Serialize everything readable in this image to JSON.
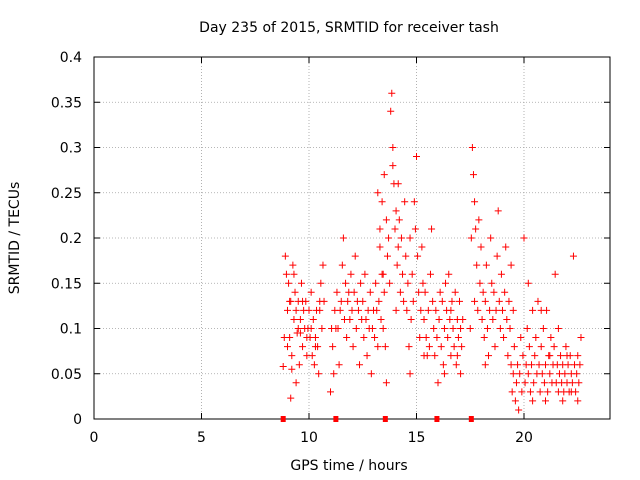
{
  "chart_data": {
    "type": "scatter",
    "title": "Day 235 of 2015, SRMTID for receiver tash",
    "xlabel": "GPS time / hours",
    "ylabel": "SRMTID / TECUs",
    "xlim": [
      0,
      24
    ],
    "ylim": [
      0,
      0.4
    ],
    "x_ticks": [
      0,
      5,
      10,
      15,
      20
    ],
    "x_tick_labels": [
      "0",
      "5",
      "10",
      "15",
      "20"
    ],
    "y_ticks": [
      0,
      0.05,
      0.1,
      0.15,
      0.2,
      0.25,
      0.3,
      0.35,
      0.4
    ],
    "y_tick_labels": [
      "0",
      "0.05",
      "0.1",
      "0.15",
      "0.2",
      "0.25",
      "0.3",
      "0.35",
      "0.4"
    ],
    "grid": true,
    "marker": "+",
    "series": [
      {
        "name": "SRMTID",
        "color": "#ff0000",
        "points": [
          [
            8.8,
            0.058
          ],
          [
            8.9,
            0.18
          ],
          [
            8.95,
            0.16
          ],
          [
            9.0,
            0.12
          ],
          [
            9.05,
            0.15
          ],
          [
            9.1,
            0.09
          ],
          [
            9.15,
            0.13
          ],
          [
            9.2,
            0.07
          ],
          [
            9.25,
            0.17
          ],
          [
            9.3,
            0.11
          ],
          [
            9.35,
            0.14
          ],
          [
            9.4,
            0.04
          ],
          [
            9.45,
            0.095
          ],
          [
            9.5,
            0.13
          ],
          [
            9.55,
            0.06
          ],
          [
            9.6,
            0.11
          ],
          [
            9.65,
            0.15
          ],
          [
            9.7,
            0.08
          ],
          [
            9.75,
            0.12
          ],
          [
            9.8,
            0.1
          ],
          [
            9.85,
            0.13
          ],
          [
            9.9,
            0.07
          ],
          [
            9.95,
            0.1
          ],
          [
            10.0,
            0.12
          ],
          [
            10.05,
            0.09
          ],
          [
            10.1,
            0.14
          ],
          [
            10.15,
            0.07
          ],
          [
            10.2,
            0.11
          ],
          [
            10.25,
            0.06
          ],
          [
            10.3,
            0.09
          ],
          [
            10.35,
            0.12
          ],
          [
            10.4,
            0.08
          ],
          [
            10.45,
            0.05
          ],
          [
            10.5,
            0.13
          ],
          [
            10.55,
            0.15
          ],
          [
            10.6,
            0.1
          ],
          [
            10.65,
            0.17
          ],
          [
            10.7,
            0.13
          ],
          [
            8.85,
            0.09
          ],
          [
            9.0,
            0.08
          ],
          [
            9.1,
            0.13
          ],
          [
            9.3,
            0.16
          ],
          [
            9.5,
            0.1
          ],
          [
            9.7,
            0.13
          ],
          [
            9.9,
            0.09
          ],
          [
            10.1,
            0.1
          ],
          [
            10.3,
            0.08
          ],
          [
            10.5,
            0.12
          ],
          [
            9.4,
            0.12
          ],
          [
            9.6,
            0.095
          ],
          [
            9.2,
            0.055
          ],
          [
            9.15,
            0.023
          ],
          [
            11.0,
            0.03
          ],
          [
            11.1,
            0.08
          ],
          [
            11.2,
            0.12
          ],
          [
            11.3,
            0.14
          ],
          [
            11.35,
            0.1
          ],
          [
            11.4,
            0.06
          ],
          [
            11.5,
            0.13
          ],
          [
            11.55,
            0.17
          ],
          [
            11.6,
            0.2
          ],
          [
            11.7,
            0.15
          ],
          [
            11.75,
            0.09
          ],
          [
            11.8,
            0.13
          ],
          [
            11.9,
            0.11
          ],
          [
            11.95,
            0.16
          ],
          [
            12.0,
            0.12
          ],
          [
            12.05,
            0.08
          ],
          [
            12.1,
            0.14
          ],
          [
            12.15,
            0.18
          ],
          [
            12.2,
            0.1
          ],
          [
            12.3,
            0.12
          ],
          [
            12.35,
            0.06
          ],
          [
            12.4,
            0.15
          ],
          [
            12.45,
            0.11
          ],
          [
            12.5,
            0.13
          ],
          [
            12.55,
            0.09
          ],
          [
            12.6,
            0.16
          ],
          [
            12.7,
            0.07
          ],
          [
            12.75,
            0.12
          ],
          [
            12.8,
            0.1
          ],
          [
            12.85,
            0.14
          ],
          [
            12.9,
            0.05
          ],
          [
            13.0,
            0.12
          ],
          [
            13.05,
            0.09
          ],
          [
            13.1,
            0.15
          ],
          [
            13.2,
            0.08
          ],
          [
            13.25,
            0.13
          ],
          [
            13.3,
            0.19
          ],
          [
            13.35,
            0.11
          ],
          [
            13.4,
            0.16
          ],
          [
            13.45,
            0.1
          ],
          [
            13.5,
            0.14
          ],
          [
            13.55,
            0.08
          ],
          [
            11.25,
            0.1
          ],
          [
            11.45,
            0.12
          ],
          [
            11.65,
            0.11
          ],
          [
            11.85,
            0.14
          ],
          [
            12.25,
            0.13
          ],
          [
            12.65,
            0.11
          ],
          [
            13.15,
            0.12
          ],
          [
            12.95,
            0.1
          ],
          [
            11.05,
            0.1
          ],
          [
            11.15,
            0.05
          ],
          [
            13.2,
            0.25
          ],
          [
            13.3,
            0.21
          ],
          [
            13.4,
            0.24
          ],
          [
            13.5,
            0.27
          ],
          [
            13.6,
            0.22
          ],
          [
            13.65,
            0.18
          ],
          [
            13.7,
            0.2
          ],
          [
            13.75,
            0.15
          ],
          [
            13.8,
            0.34
          ],
          [
            13.85,
            0.36
          ],
          [
            13.9,
            0.3
          ],
          [
            13.95,
            0.26
          ],
          [
            14.0,
            0.21
          ],
          [
            14.05,
            0.23
          ],
          [
            14.1,
            0.17
          ],
          [
            14.15,
            0.19
          ],
          [
            14.2,
            0.22
          ],
          [
            14.25,
            0.14
          ],
          [
            14.3,
            0.2
          ],
          [
            14.35,
            0.16
          ],
          [
            14.4,
            0.13
          ],
          [
            14.45,
            0.24
          ],
          [
            14.5,
            0.18
          ],
          [
            14.55,
            0.12
          ],
          [
            14.6,
            0.15
          ],
          [
            14.65,
            0.08
          ],
          [
            14.7,
            0.05
          ],
          [
            14.75,
            0.11
          ],
          [
            14.8,
            0.16
          ],
          [
            14.85,
            0.13
          ],
          [
            14.9,
            0.24
          ],
          [
            14.95,
            0.21
          ],
          [
            15.0,
            0.29
          ],
          [
            15.05,
            0.18
          ],
          [
            15.1,
            0.14
          ],
          [
            15.15,
            0.09
          ],
          [
            15.2,
            0.12
          ],
          [
            15.25,
            0.19
          ],
          [
            15.3,
            0.15
          ],
          [
            15.35,
            0.11
          ],
          [
            15.4,
            0.14
          ],
          [
            15.45,
            0.09
          ],
          [
            15.5,
            0.07
          ],
          [
            15.55,
            0.12
          ],
          [
            15.6,
            0.08
          ],
          [
            15.65,
            0.16
          ],
          [
            15.7,
            0.21
          ],
          [
            15.75,
            0.13
          ],
          [
            13.6,
            0.04
          ],
          [
            13.45,
            0.16
          ],
          [
            14.05,
            0.12
          ],
          [
            14.7,
            0.2
          ],
          [
            15.35,
            0.07
          ],
          [
            13.9,
            0.28
          ],
          [
            14.15,
            0.26
          ],
          [
            15.8,
            0.1
          ],
          [
            15.85,
            0.07
          ],
          [
            15.9,
            0.12
          ],
          [
            15.95,
            0.09
          ],
          [
            16.0,
            0.04
          ],
          [
            16.05,
            0.11
          ],
          [
            16.1,
            0.14
          ],
          [
            16.15,
            0.08
          ],
          [
            16.2,
            0.13
          ],
          [
            16.25,
            0.06
          ],
          [
            16.3,
            0.1
          ],
          [
            16.35,
            0.15
          ],
          [
            16.4,
            0.12
          ],
          [
            16.45,
            0.09
          ],
          [
            16.5,
            0.16
          ],
          [
            16.55,
            0.11
          ],
          [
            16.6,
            0.07
          ],
          [
            16.65,
            0.13
          ],
          [
            16.7,
            0.1
          ],
          [
            16.75,
            0.08
          ],
          [
            16.8,
            0.14
          ],
          [
            16.85,
            0.06
          ],
          [
            16.9,
            0.11
          ],
          [
            16.95,
            0.09
          ],
          [
            17.0,
            0.13
          ],
          [
            17.05,
            0.05
          ],
          [
            17.1,
            0.08
          ],
          [
            17.15,
            0.11
          ],
          [
            16.3,
            0.05
          ],
          [
            16.6,
            0.12
          ],
          [
            16.9,
            0.07
          ],
          [
            17.05,
            0.1
          ],
          [
            17.5,
            0.1
          ],
          [
            17.55,
            0.2
          ],
          [
            17.6,
            0.3
          ],
          [
            17.65,
            0.27
          ],
          [
            17.7,
            0.24
          ],
          [
            17.75,
            0.21
          ],
          [
            17.8,
            0.17
          ],
          [
            17.85,
            0.12
          ],
          [
            17.9,
            0.22
          ],
          [
            17.95,
            0.15
          ],
          [
            18.0,
            0.19
          ],
          [
            18.05,
            0.11
          ],
          [
            18.1,
            0.14
          ],
          [
            18.15,
            0.09
          ],
          [
            18.2,
            0.13
          ],
          [
            18.25,
            0.17
          ],
          [
            18.3,
            0.1
          ],
          [
            18.35,
            0.07
          ],
          [
            18.4,
            0.12
          ],
          [
            18.45,
            0.2
          ],
          [
            18.5,
            0.15
          ],
          [
            18.55,
            0.11
          ],
          [
            18.6,
            0.14
          ],
          [
            18.65,
            0.08
          ],
          [
            18.7,
            0.12
          ],
          [
            18.75,
            0.18
          ],
          [
            18.8,
            0.23
          ],
          [
            18.85,
            0.13
          ],
          [
            18.9,
            0.1
          ],
          [
            18.95,
            0.16
          ],
          [
            19.0,
            0.12
          ],
          [
            19.05,
            0.09
          ],
          [
            19.1,
            0.14
          ],
          [
            19.15,
            0.19
          ],
          [
            19.2,
            0.11
          ],
          [
            19.25,
            0.07
          ],
          [
            19.3,
            0.13
          ],
          [
            19.35,
            0.1
          ],
          [
            19.4,
            0.17
          ],
          [
            19.5,
            0.12
          ],
          [
            17.7,
            0.13
          ],
          [
            18.2,
            0.06
          ],
          [
            19.4,
            0.06
          ],
          [
            19.45,
            0.03
          ],
          [
            19.5,
            0.05
          ],
          [
            19.55,
            0.08
          ],
          [
            19.6,
            0.02
          ],
          [
            19.65,
            0.04
          ],
          [
            19.7,
            0.06
          ],
          [
            19.75,
            0.01
          ],
          [
            19.8,
            0.05
          ],
          [
            19.85,
            0.09
          ],
          [
            19.9,
            0.03
          ],
          [
            19.95,
            0.07
          ],
          [
            20.0,
            0.2
          ],
          [
            20.05,
            0.04
          ],
          [
            20.1,
            0.06
          ],
          [
            20.15,
            0.1
          ],
          [
            20.2,
            0.05
          ],
          [
            20.25,
            0.08
          ],
          [
            20.3,
            0.03
          ],
          [
            20.35,
            0.06
          ],
          [
            20.4,
            0.12
          ],
          [
            20.45,
            0.04
          ],
          [
            20.5,
            0.07
          ],
          [
            20.55,
            0.09
          ],
          [
            20.6,
            0.05
          ],
          [
            20.65,
            0.13
          ],
          [
            20.7,
            0.06
          ],
          [
            20.75,
            0.03
          ],
          [
            20.8,
            0.08
          ],
          [
            20.85,
            0.05
          ],
          [
            20.9,
            0.1
          ],
          [
            20.95,
            0.04
          ],
          [
            21.0,
            0.06
          ],
          [
            21.05,
            0.12
          ],
          [
            21.1,
            0.03
          ],
          [
            21.15,
            0.07
          ],
          [
            21.2,
            0.05
          ],
          [
            21.25,
            0.09
          ],
          [
            21.3,
            0.04
          ],
          [
            21.35,
            0.06
          ],
          [
            21.4,
            0.08
          ],
          [
            21.45,
            0.16
          ],
          [
            21.5,
            0.04
          ],
          [
            21.55,
            0.06
          ],
          [
            21.6,
            0.03
          ],
          [
            21.65,
            0.05
          ],
          [
            21.7,
            0.07
          ],
          [
            21.75,
            0.04
          ],
          [
            21.8,
            0.06
          ],
          [
            21.85,
            0.03
          ],
          [
            21.9,
            0.05
          ],
          [
            21.95,
            0.08
          ],
          [
            22.0,
            0.04
          ],
          [
            22.05,
            0.06
          ],
          [
            22.1,
            0.03
          ],
          [
            22.15,
            0.07
          ],
          [
            22.2,
            0.05
          ],
          [
            22.25,
            0.04
          ],
          [
            22.3,
            0.18
          ],
          [
            22.35,
            0.06
          ],
          [
            22.4,
            0.03
          ],
          [
            22.45,
            0.05
          ],
          [
            22.5,
            0.07
          ],
          [
            22.55,
            0.04
          ],
          [
            22.6,
            0.06
          ],
          [
            22.65,
            0.09
          ],
          [
            20.4,
            0.02
          ],
          [
            21.0,
            0.02
          ],
          [
            21.8,
            0.02
          ],
          [
            22.2,
            0.03
          ],
          [
            21.6,
            0.1
          ],
          [
            21.2,
            0.07
          ],
          [
            20.8,
            0.12
          ],
          [
            20.2,
            0.15
          ],
          [
            22.0,
            0.07
          ],
          [
            22.5,
            0.02
          ]
        ]
      }
    ],
    "gap_markers": {
      "color": "#ff0000",
      "x": [
        8.8,
        11.25,
        13.55,
        15.95,
        17.55
      ]
    }
  }
}
